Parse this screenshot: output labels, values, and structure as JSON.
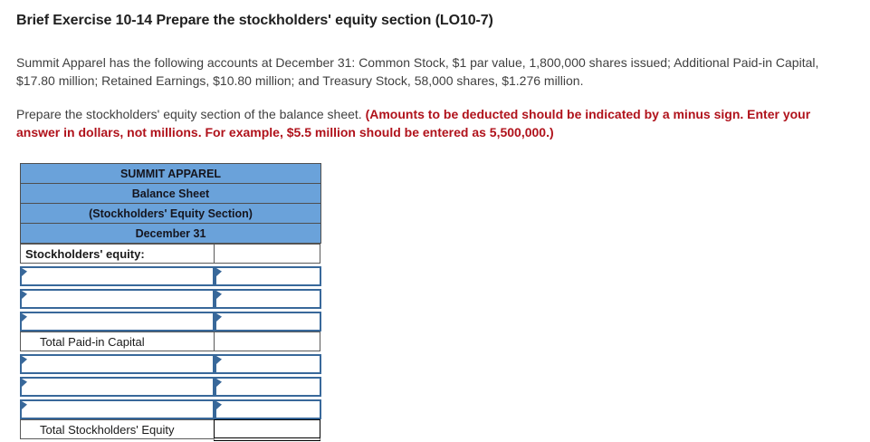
{
  "page": {
    "title": "Brief Exercise 10-14 Prepare the stockholders' equity section (LO10-7)",
    "problem_statement": "Summit Apparel has the following accounts at December 31: Common Stock, $1 par value, 1,800,000 shares issued; Additional Paid-in Capital, $17.80 million; Retained Earnings, $10.80 million; and Treasury Stock, 58,000 shares, $1.276 million.",
    "instruction_plain": "Prepare the stockholders' equity section of the balance sheet. ",
    "instruction_emphasis": "(Amounts to be deducted should be indicated by a minus sign. Enter your answer in dollars, not millions. For example, $5.5 million should be entered as 5,500,000.)"
  },
  "worksheet": {
    "headers": [
      "SUMMIT APPAREL",
      "Balance Sheet",
      "(Stockholders' Equity Section)",
      "December 31"
    ],
    "section_label": "Stockholders' equity:",
    "total_paid_in_label": "Total Paid-in Capital",
    "total_equity_label": "Total Stockholders' Equity",
    "rows": [
      {
        "account": "",
        "amount": ""
      },
      {
        "account": "",
        "amount": ""
      },
      {
        "account": "",
        "amount": ""
      },
      {
        "account": "",
        "amount": ""
      },
      {
        "account": "",
        "amount": ""
      },
      {
        "account": "",
        "amount": ""
      }
    ],
    "total_paid_in_value": "",
    "total_equity_value": "",
    "colors": {
      "header_bg": "#6aa2da",
      "input_border": "#38689a",
      "emphasis_red": "#b0121b"
    }
  }
}
